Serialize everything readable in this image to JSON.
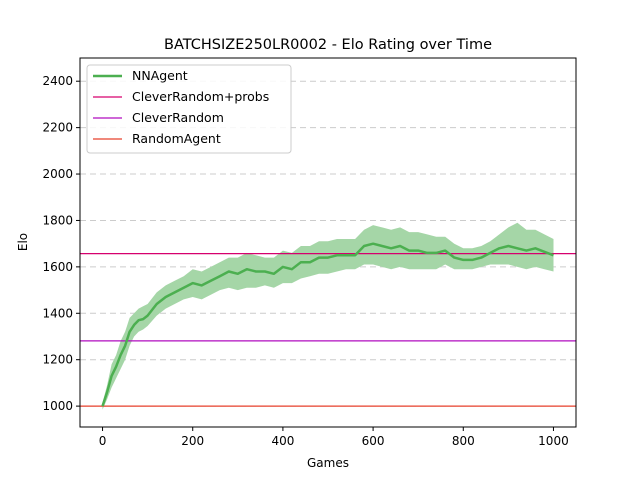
{
  "chart_data": {
    "type": "line",
    "title": "BATCHSIZE250LR0002 - Elo Rating over Time",
    "xlabel": "Games",
    "ylabel": "Elo",
    "xlim": [
      -50,
      1050
    ],
    "ylim": [
      910,
      2500
    ],
    "xticks": [
      0,
      200,
      400,
      600,
      800,
      1000
    ],
    "yticks": [
      1000,
      1200,
      1400,
      1600,
      1800,
      2000,
      2200,
      2400
    ],
    "grid": "horizontal-dashed",
    "legend_position": "top-left",
    "series": [
      {
        "name": "NNAgent",
        "type": "line-with-band",
        "color": "#4caf50",
        "band_color": "#a5d6a7",
        "x": [
          0,
          10,
          20,
          30,
          40,
          50,
          60,
          70,
          80,
          90,
          100,
          120,
          140,
          160,
          180,
          200,
          220,
          240,
          260,
          280,
          300,
          320,
          340,
          360,
          380,
          400,
          420,
          440,
          460,
          480,
          500,
          520,
          540,
          560,
          580,
          600,
          620,
          640,
          660,
          680,
          700,
          720,
          740,
          760,
          780,
          800,
          820,
          840,
          860,
          880,
          900,
          920,
          940,
          960,
          980,
          1000
        ],
        "y": [
          1000,
          1060,
          1130,
          1170,
          1220,
          1260,
          1320,
          1350,
          1370,
          1375,
          1390,
          1440,
          1470,
          1490,
          1510,
          1530,
          1520,
          1540,
          1560,
          1580,
          1570,
          1590,
          1580,
          1580,
          1570,
          1600,
          1590,
          1620,
          1620,
          1640,
          1640,
          1650,
          1650,
          1650,
          1690,
          1700,
          1690,
          1680,
          1690,
          1670,
          1670,
          1660,
          1660,
          1670,
          1640,
          1630,
          1630,
          1640,
          1660,
          1680,
          1690,
          1680,
          1670,
          1680,
          1665,
          1650
        ],
        "lower": [
          985,
          1030,
          1080,
          1120,
          1160,
          1200,
          1260,
          1300,
          1320,
          1330,
          1345,
          1390,
          1420,
          1440,
          1460,
          1470,
          1460,
          1480,
          1500,
          1510,
          1500,
          1510,
          1510,
          1520,
          1510,
          1530,
          1530,
          1550,
          1560,
          1570,
          1570,
          1580,
          1590,
          1590,
          1610,
          1610,
          1600,
          1590,
          1600,
          1590,
          1590,
          1590,
          1590,
          1610,
          1590,
          1590,
          1590,
          1600,
          1610,
          1610,
          1610,
          1600,
          1590,
          1600,
          1590,
          1580
        ],
        "upper": [
          1015,
          1090,
          1180,
          1220,
          1280,
          1320,
          1380,
          1400,
          1420,
          1430,
          1440,
          1490,
          1520,
          1540,
          1560,
          1590,
          1580,
          1600,
          1620,
          1640,
          1640,
          1660,
          1650,
          1640,
          1640,
          1670,
          1660,
          1690,
          1690,
          1710,
          1710,
          1720,
          1720,
          1720,
          1760,
          1780,
          1770,
          1760,
          1770,
          1750,
          1750,
          1740,
          1730,
          1730,
          1700,
          1680,
          1680,
          1690,
          1710,
          1740,
          1770,
          1790,
          1760,
          1760,
          1740,
          1720
        ]
      },
      {
        "name": "CleverRandom+probs",
        "type": "hline",
        "color": "#d6006e",
        "y": 1657
      },
      {
        "name": "CleverRandom",
        "type": "hline",
        "color": "#b10cbf",
        "y": 1281
      },
      {
        "name": "RandomAgent",
        "type": "hline",
        "color": "#e8412c",
        "y": 1000
      }
    ]
  }
}
